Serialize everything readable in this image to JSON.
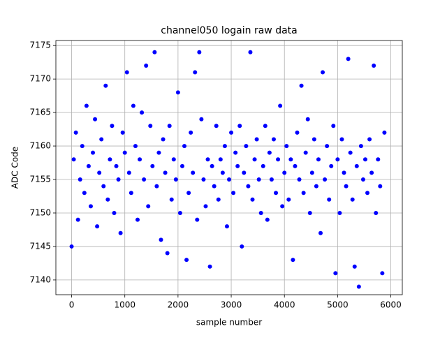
{
  "chart_data": {
    "type": "scatter",
    "title": "channel050 logain raw data",
    "x_label": "sample number",
    "y_label": "ADC Code",
    "color": "#0000ff",
    "grid": true,
    "xlim": [
      -296,
      6216
    ],
    "ylim": [
      7137.8,
      7175.75
    ],
    "xticks": [
      0,
      1000,
      2000,
      3000,
      4000,
      5000,
      6000
    ],
    "yticks": [
      7140,
      7145,
      7150,
      7155,
      7160,
      7165,
      7170,
      7175
    ],
    "x": [
      0,
      40,
      80,
      120,
      160,
      200,
      240,
      280,
      320,
      360,
      400,
      440,
      480,
      520,
      560,
      600,
      640,
      680,
      720,
      760,
      800,
      840,
      880,
      920,
      960,
      1000,
      1040,
      1080,
      1120,
      1160,
      1200,
      1240,
      1280,
      1320,
      1360,
      1400,
      1440,
      1480,
      1520,
      1560,
      1600,
      1640,
      1680,
      1720,
      1760,
      1800,
      1840,
      1880,
      1920,
      1960,
      2000,
      2040,
      2080,
      2120,
      2160,
      2200,
      2240,
      2280,
      2320,
      2360,
      2400,
      2440,
      2480,
      2520,
      2560,
      2600,
      2640,
      2680,
      2720,
      2760,
      2800,
      2840,
      2880,
      2920,
      2960,
      3000,
      3040,
      3080,
      3120,
      3160,
      3200,
      3240,
      3280,
      3320,
      3360,
      3400,
      3440,
      3480,
      3520,
      3560,
      3600,
      3640,
      3680,
      3720,
      3760,
      3800,
      3840,
      3880,
      3920,
      3960,
      4000,
      4040,
      4080,
      4120,
      4160,
      4200,
      4240,
      4280,
      4320,
      4360,
      4400,
      4440,
      4480,
      4520,
      4560,
      4600,
      4640,
      4680,
      4720,
      4760,
      4800,
      4840,
      4880,
      4920,
      4960,
      5000,
      5040,
      5080,
      5120,
      5160,
      5200,
      5240,
      5280,
      5320,
      5360,
      5400,
      5440,
      5480,
      5520,
      5560,
      5600,
      5640,
      5680,
      5720,
      5760,
      5800,
      5840,
      5880
    ],
    "values": [
      7145,
      7158,
      7162,
      7149,
      7155,
      7160,
      7153,
      7166,
      7157,
      7151,
      7159,
      7164,
      7148,
      7156,
      7161,
      7154,
      7169,
      7152,
      7158,
      7163,
      7150,
      7157,
      7155,
      7147,
      7162,
      7159,
      7171,
      7156,
      7153,
      7166,
      7160,
      7149,
      7158,
      7165,
      7155,
      7172,
      7151,
      7163,
      7157,
      7174,
      7154,
      7159,
      7146,
      7161,
      7156,
      7144,
      7163,
      7152,
      7158,
      7155,
      7168,
      7150,
      7157,
      7160,
      7143,
      7153,
      7162,
      7156,
      7171,
      7149,
      7174,
      7164,
      7155,
      7151,
      7158,
      7142,
      7157,
      7154,
      7163,
      7152,
      7158,
      7156,
      7160,
      7148,
      7155,
      7162,
      7153,
      7159,
      7157,
      7163,
      7145,
      7156,
      7160,
      7154,
      7174,
      7152,
      7158,
      7161,
      7155,
      7150,
      7157,
      7163,
      7149,
      7159,
      7155,
      7161,
      7153,
      7158,
      7166,
      7151,
      7156,
      7160,
      7152,
      7158,
      7143,
      7157,
      7162,
      7155,
      7169,
      7153,
      7159,
      7164,
      7150,
      7156,
      7161,
      7154,
      7158,
      7147,
      7171,
      7155,
      7160,
      7152,
      7157,
      7163,
      7141,
      7158,
      7150,
      7161,
      7156,
      7154,
      7173,
      7159,
      7152,
      7142,
      7157,
      7139,
      7160,
      7155,
      7158,
      7153,
      7161,
      7156,
      7172,
      7150,
      7158,
      7154,
      7141,
      7162
    ]
  }
}
